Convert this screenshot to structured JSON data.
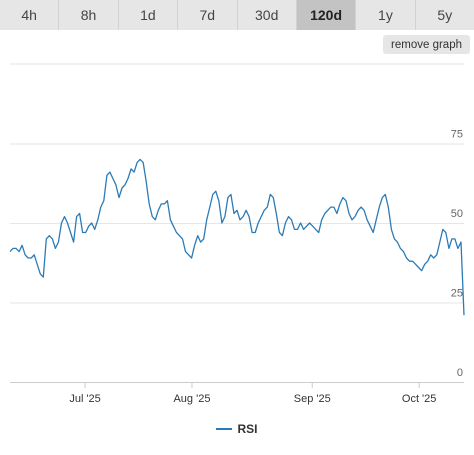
{
  "timeframes": {
    "tabs": [
      {
        "label": "4h"
      },
      {
        "label": "8h"
      },
      {
        "label": "1d"
      },
      {
        "label": "7d"
      },
      {
        "label": "30d"
      },
      {
        "label": "120d"
      },
      {
        "label": "1y"
      },
      {
        "label": "5y"
      }
    ],
    "active_label": "120d"
  },
  "controls": {
    "remove_graph_label": "remove graph"
  },
  "colors": {
    "series": "#2c7bb6",
    "grid": "#e6e6e6",
    "tab_bg": "#e6e6e6",
    "tab_active_bg": "#c3c3c3"
  },
  "chart_data": {
    "type": "line",
    "ylim": [
      0,
      100
    ],
    "yticks": [
      0,
      25,
      50,
      75
    ],
    "x_ticks": [
      {
        "label": "Jul '25",
        "x": 2025.5
      },
      {
        "label": "Aug '25",
        "x": 2025.58
      },
      {
        "label": "Sep '25",
        "x": 2025.67
      },
      {
        "label": "Oct '25",
        "x": 2025.75
      }
    ],
    "grid": true,
    "legend_position": "bottom",
    "series": [
      {
        "name": "RSI",
        "x_range": [
          "2025-06-12",
          "2025-10-14"
        ],
        "values": [
          41,
          42,
          42,
          41,
          43,
          40,
          39,
          39,
          40,
          37,
          34,
          33,
          45,
          46,
          45,
          42,
          44,
          50,
          52,
          50,
          47,
          44,
          52,
          53,
          47,
          47,
          49,
          50,
          48,
          51,
          55,
          57,
          65,
          66,
          64,
          62,
          58,
          61,
          62,
          64,
          67,
          66,
          69,
          70,
          69,
          63,
          56,
          52,
          51,
          54,
          56,
          56,
          57,
          51,
          49,
          47,
          46,
          45,
          41,
          40,
          39,
          43,
          46,
          44,
          45,
          51,
          55,
          59,
          60,
          57,
          50,
          52,
          58,
          59,
          53,
          54,
          51,
          52,
          54,
          52,
          47,
          47,
          50,
          52,
          54,
          55,
          59,
          58,
          53,
          47,
          46,
          50,
          52,
          51,
          48,
          48,
          50,
          48,
          49,
          50,
          49,
          48,
          47,
          51,
          53,
          54,
          55,
          55,
          53,
          56,
          58,
          57,
          53,
          51,
          52,
          54,
          55,
          54,
          51,
          49,
          47,
          51,
          55,
          58,
          59,
          55,
          48,
          45,
          44,
          42,
          41,
          39,
          38,
          38,
          37,
          36,
          35,
          37,
          38,
          40,
          39,
          40,
          44,
          48,
          47,
          42,
          45,
          45,
          42,
          44,
          21
        ]
      }
    ]
  }
}
